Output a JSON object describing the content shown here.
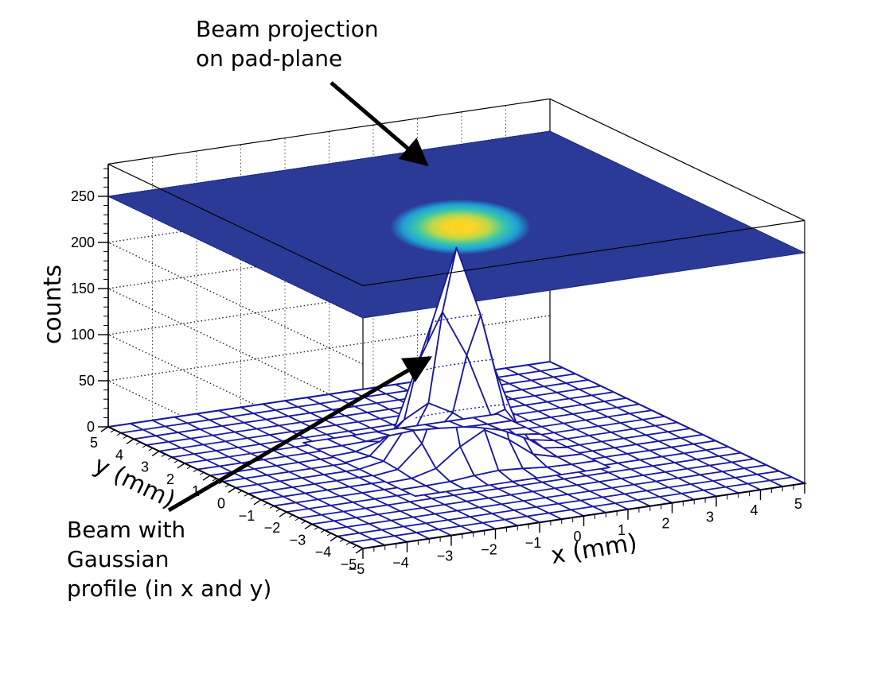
{
  "chart_data": {
    "type": "lego-surface-3d",
    "title": "",
    "xlabel": "x (mm)",
    "ylabel": "y (mm)",
    "zlabel": "counts",
    "xlim": [
      -5,
      5
    ],
    "ylim": [
      -5,
      5
    ],
    "zlim": [
      0,
      285
    ],
    "x_ticks": [
      "−5",
      "−4",
      "−3",
      "−2",
      "−1",
      "0",
      "1",
      "2",
      "3",
      "4",
      "5"
    ],
    "y_ticks": [
      "−5",
      "−4",
      "−3",
      "−2",
      "−1",
      "0",
      "1",
      "2",
      "3",
      "4",
      "5"
    ],
    "z_ticks": [
      "0",
      "50",
      "100",
      "150",
      "200",
      "250"
    ],
    "grid": true,
    "surface": {
      "model": "2D Gaussian",
      "peak_counts": 225,
      "mean_x": 0.0,
      "mean_y": 0.0,
      "sigma_x_mm": 0.6,
      "sigma_y_mm": 0.6,
      "bins_x": 20,
      "bins_y": 20
    },
    "projection": {
      "label": "Beam projection on pad-plane",
      "colors": [
        "#2b3a96",
        "#1f9fd6",
        "#3cc6a9",
        "#c9d943",
        "#ffd21e"
      ]
    },
    "colors": {
      "wire": "#1a1a9e",
      "plane": "#2b3a96",
      "axis": "#000000"
    }
  },
  "annotations": {
    "top": [
      "Beam projection",
      "on pad-plane"
    ],
    "bottom": [
      "Beam with",
      "Gaussian",
      "profile (in x and y)"
    ]
  }
}
